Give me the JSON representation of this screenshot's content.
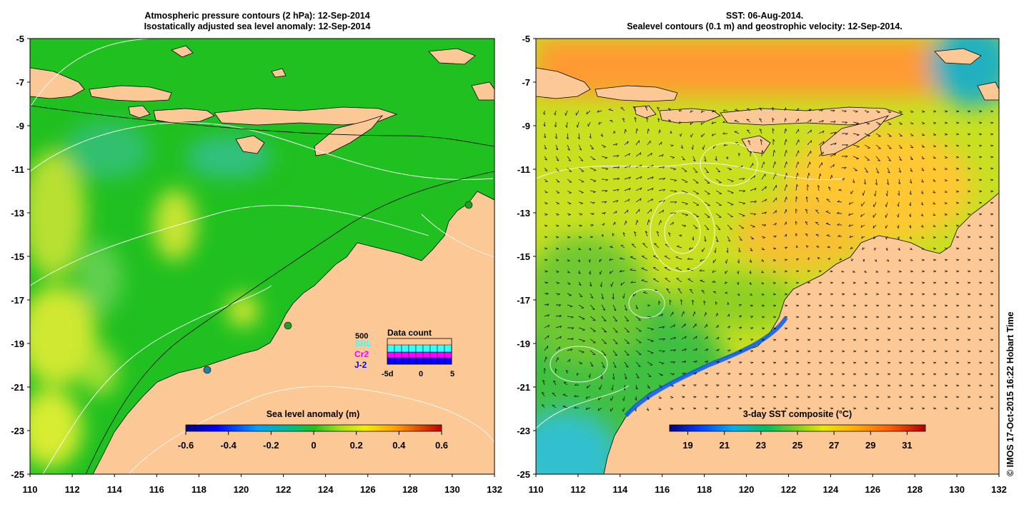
{
  "left_panel": {
    "title_line1": "Atmospheric pressure contours (2 hPa): 12-Sep-2014",
    "title_line2": "Isostatically adjusted sea level anomaly: 12-Sep-2014",
    "colorbar": {
      "label": "Sea level anomaly (m)",
      "ticks": [
        "-0.6",
        "-0.4",
        "-0.2",
        "0",
        "0.2",
        "0.4",
        "0.6"
      ],
      "range": [
        -0.6,
        0.6
      ]
    },
    "data_count": {
      "title": "Data count",
      "scale_label": "500",
      "satellites": [
        {
          "name": "SRL",
          "color": "#33ffff"
        },
        {
          "name": "Cr2",
          "color": "#ff00ff"
        },
        {
          "name": "J-2",
          "color": "#0000ff"
        }
      ],
      "x_ticks": [
        "-5d",
        "0",
        "5"
      ]
    }
  },
  "right_panel": {
    "title_line1": "SST: 06-Aug-2014.",
    "title_line2": "Sealevel contours (0.1 m) and geostrophic velocity: 12-Sep-2014.",
    "colorbar": {
      "label": "3-day SST composite (°C)",
      "ticks": [
        "19",
        "21",
        "23",
        "25",
        "27",
        "29",
        "31"
      ],
      "range": [
        18,
        32
      ]
    }
  },
  "axes": {
    "lon_ticks": [
      "110",
      "112",
      "114",
      "116",
      "118",
      "120",
      "122",
      "124",
      "126",
      "128",
      "130",
      "132"
    ],
    "lat_ticks": [
      "-5",
      "-7",
      "-9",
      "-11",
      "-13",
      "-15",
      "-17",
      "-19",
      "-21",
      "-23",
      "-25"
    ],
    "lon_range": [
      110,
      132
    ],
    "lat_range": [
      -25,
      -5
    ]
  },
  "credit": "© IMOS 17-Oct-2015 16:22 Hobart Time",
  "colors": {
    "land": "#fcc896",
    "sla_ocean": "#20c020",
    "sst_ocean": "#c8e020"
  }
}
